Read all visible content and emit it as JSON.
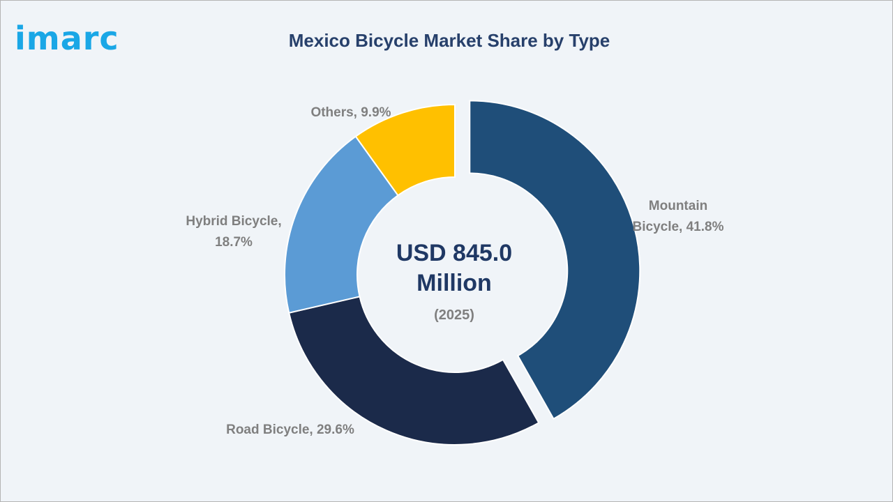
{
  "logo": {
    "text": "imarc",
    "color": "#1aa7e6"
  },
  "chart_data": {
    "type": "pie",
    "title": "Mexico Bicycle Market Share by Type",
    "center_value": "USD 845.0",
    "center_unit": "Million",
    "center_year": "(2025)",
    "categories": [
      "Mountain Bicycle",
      "Road Bicycle",
      "Hybrid Bicycle",
      "Others"
    ],
    "values": [
      41.8,
      29.6,
      18.7,
      9.9
    ],
    "labels": [
      [
        "Mountain",
        "Bicycle, 41.8%"
      ],
      [
        "Road Bicycle, 29.6%"
      ],
      [
        "Hybrid Bicycle,",
        "18.7%"
      ],
      [
        "Others, 9.9%"
      ]
    ],
    "colors": [
      "#1f4e79",
      "#1b2a4a",
      "#5b9bd5",
      "#ffc000"
    ],
    "exploded": "Mountain Bicycle",
    "legend": "none"
  }
}
